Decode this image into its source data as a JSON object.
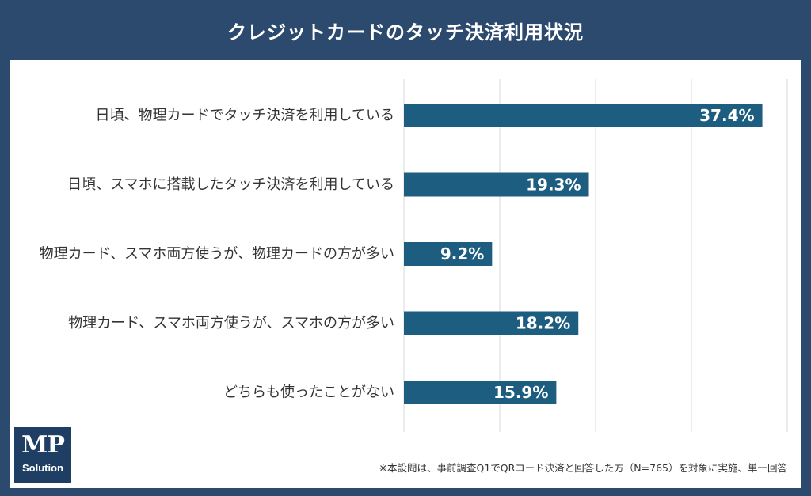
{
  "title": "クレジットカードのタッチ決済利用状況",
  "colors": {
    "frame": "#2c4a6e",
    "bar": "#1d5d80",
    "gridline": "#d9d9d9"
  },
  "logo": {
    "main": "MP",
    "sub": "Solution"
  },
  "footnote": "※本設問は、事前調査Q1でQRコード決済と回答した方（N=765）を対象に実施、単一回答",
  "chart_data": {
    "type": "bar",
    "orientation": "horizontal",
    "categories": [
      "日頃、物理カードでタッチ決済を利用している",
      "日頃、スマホに搭載したタッチ決済を利用している",
      "物理カード、スマホ両方使うが、物理カードの方が多い",
      "物理カード、スマホ両方使うが、スマホの方が多い",
      "どちらも使ったことがない"
    ],
    "values": [
      37.4,
      19.3,
      9.2,
      18.2,
      15.9
    ],
    "value_labels": [
      "37.4%",
      "19.3%",
      "9.2%",
      "18.2%",
      "15.9%"
    ],
    "xlim": [
      0,
      40
    ],
    "grid": true,
    "gridline_step": 10,
    "axis_tick_labels_shown": false
  }
}
